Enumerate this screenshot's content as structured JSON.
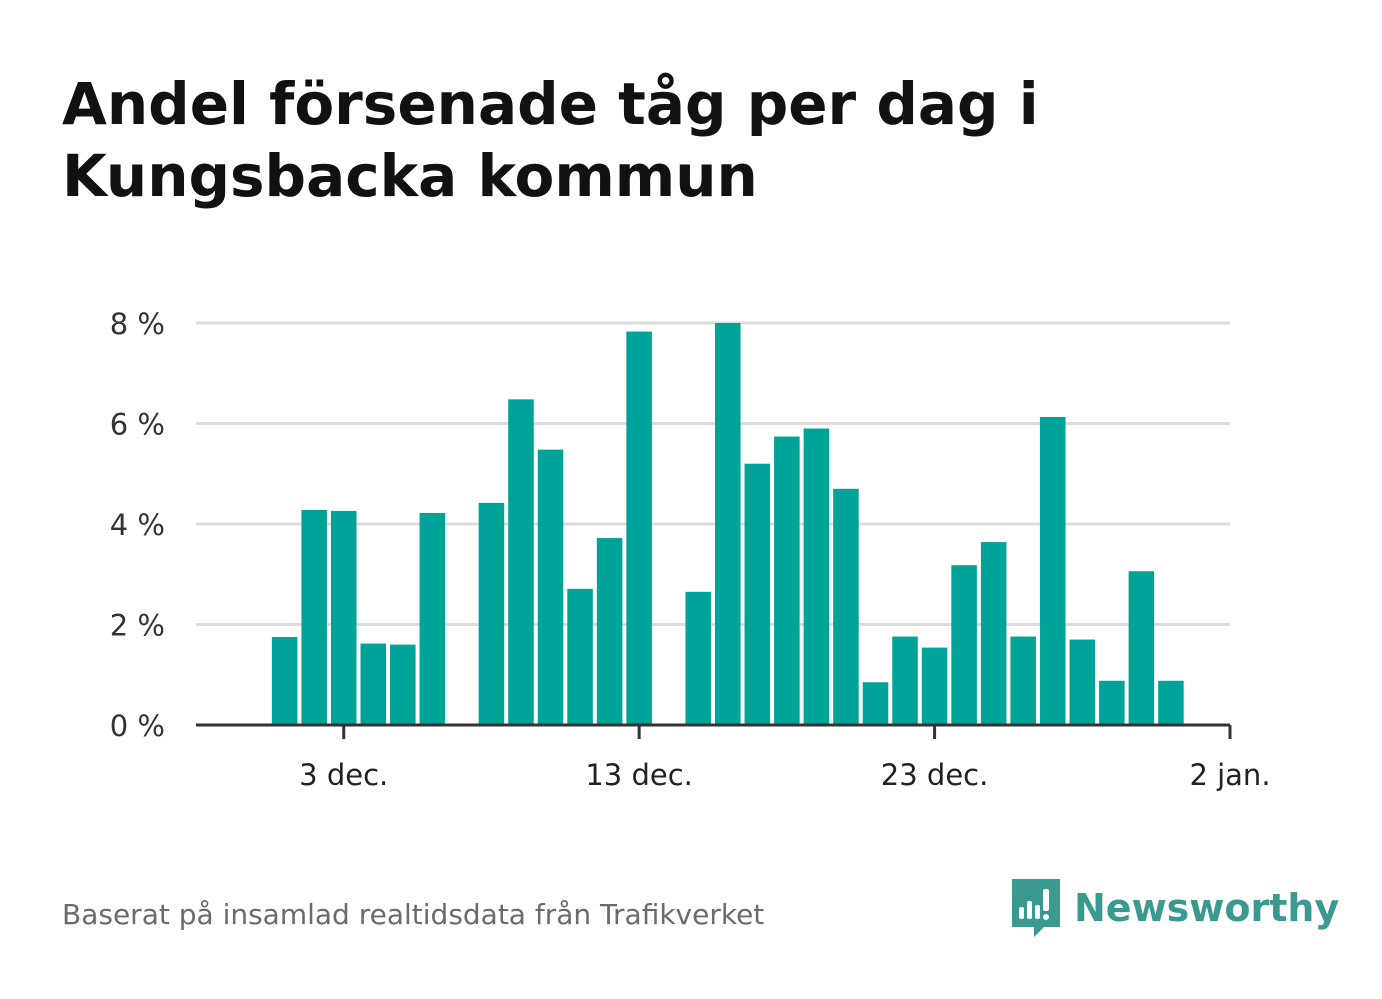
{
  "title": "Andel försenade tåg per dag i Kungsbacka kommun",
  "footer": {
    "source": "Baserat på insamlad realtidsdata från Trafikverket"
  },
  "brand": {
    "name": "Newsworthy",
    "icon": "newsworthy-logo-icon",
    "color": "#3a9a8f"
  },
  "colors": {
    "bar": "#00a398",
    "grid": "#dddddd",
    "axis": "#333333"
  },
  "chart_data": {
    "type": "bar",
    "x_unit": "day",
    "x_start": "2023-11-29",
    "x_end": "2024-01-02",
    "xlim": [
      "2023-11-28",
      "2024-01-02"
    ],
    "ylim": [
      0,
      8
    ],
    "y_ticks": [
      {
        "value": 0,
        "label": "0 %"
      },
      {
        "value": 2,
        "label": "2 %"
      },
      {
        "value": 4,
        "label": "4 %"
      },
      {
        "value": 6,
        "label": "6 %"
      },
      {
        "value": 8,
        "label": "8 %"
      }
    ],
    "x_ticks": [
      {
        "date": "2023-12-03",
        "label": "3 dec."
      },
      {
        "date": "2023-12-13",
        "label": "13 dec."
      },
      {
        "date": "2023-12-23",
        "label": "23 dec."
      },
      {
        "date": "2024-01-02",
        "label": "2 jan."
      }
    ],
    "grid": true,
    "series": [
      {
        "points": [
          {
            "date": "2023-11-29",
            "value": null
          },
          {
            "date": "2023-11-30",
            "value": null
          },
          {
            "date": "2023-12-01",
            "value": 1.75
          },
          {
            "date": "2023-12-02",
            "value": 4.28
          },
          {
            "date": "2023-12-03",
            "value": 4.26
          },
          {
            "date": "2023-12-04",
            "value": 1.62
          },
          {
            "date": "2023-12-05",
            "value": 1.6
          },
          {
            "date": "2023-12-06",
            "value": 4.22
          },
          {
            "date": "2023-12-07",
            "value": null
          },
          {
            "date": "2023-12-08",
            "value": 4.42
          },
          {
            "date": "2023-12-09",
            "value": 6.48
          },
          {
            "date": "2023-12-10",
            "value": 5.48
          },
          {
            "date": "2023-12-11",
            "value": 2.71
          },
          {
            "date": "2023-12-12",
            "value": 3.72
          },
          {
            "date": "2023-12-13",
            "value": 7.83
          },
          {
            "date": "2023-12-14",
            "value": null
          },
          {
            "date": "2023-12-15",
            "value": 2.65
          },
          {
            "date": "2023-12-16",
            "value": 8.0
          },
          {
            "date": "2023-12-17",
            "value": 5.2
          },
          {
            "date": "2023-12-18",
            "value": 5.74
          },
          {
            "date": "2023-12-19",
            "value": 5.9
          },
          {
            "date": "2023-12-20",
            "value": 4.7
          },
          {
            "date": "2023-12-21",
            "value": 0.85
          },
          {
            "date": "2023-12-22",
            "value": 1.76
          },
          {
            "date": "2023-12-23",
            "value": 1.54
          },
          {
            "date": "2023-12-24",
            "value": 3.18
          },
          {
            "date": "2023-12-25",
            "value": 3.64
          },
          {
            "date": "2023-12-26",
            "value": 1.76
          },
          {
            "date": "2023-12-27",
            "value": 6.13
          },
          {
            "date": "2023-12-28",
            "value": 1.7
          },
          {
            "date": "2023-12-29",
            "value": 0.88
          },
          {
            "date": "2023-12-30",
            "value": 3.06
          },
          {
            "date": "2023-12-31",
            "value": 0.88
          },
          {
            "date": "2024-01-01",
            "value": null
          }
        ]
      }
    ]
  }
}
